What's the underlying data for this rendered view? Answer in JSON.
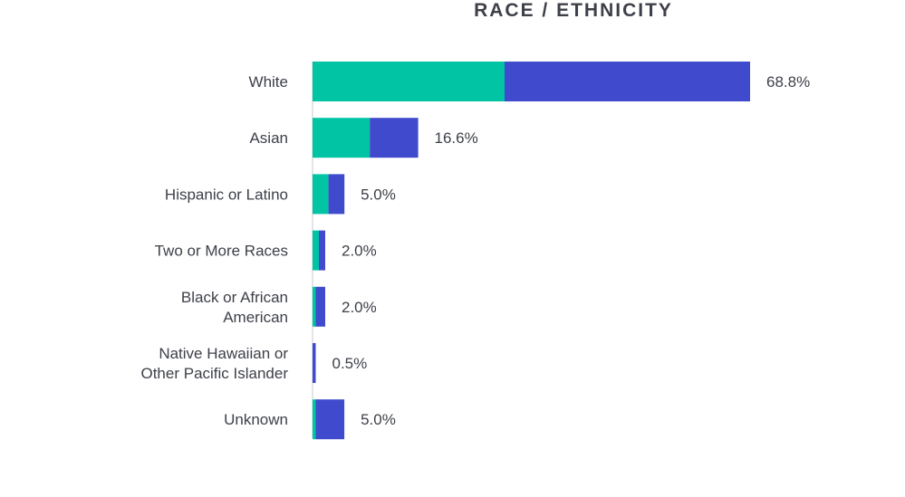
{
  "chart_data": {
    "type": "bar",
    "orientation": "horizontal",
    "stacked": true,
    "title": "RACE / ETHNICITY",
    "categories": [
      [
        "White"
      ],
      [
        "Asian"
      ],
      [
        "Hispanic or Latino"
      ],
      [
        "Two or More Races"
      ],
      [
        "Black or African",
        "American"
      ],
      [
        "Native Hawaiian or",
        "Other Pacific Islander"
      ],
      [
        "Unknown"
      ]
    ],
    "series": [
      {
        "values": [
          30.2,
          9.0,
          2.5,
          1.0,
          0.5,
          0.0,
          0.5
        ]
      },
      {
        "values": [
          38.6,
          7.6,
          2.5,
          1.0,
          1.5,
          0.5,
          4.5
        ]
      }
    ],
    "totals": [
      68.8,
      16.6,
      5.0,
      2.0,
      2.0,
      0.5,
      5.0
    ],
    "value_labels": [
      "68.8%",
      "16.6%",
      "5.0%",
      "2.0%",
      "2.0%",
      "0.5%",
      "5.0%"
    ],
    "xlim": [
      0,
      68.8
    ],
    "grid": false,
    "legend": "none",
    "colors": {
      "series_1": "#00c4a3",
      "series_2": "#3f4bcc",
      "axis": "#c8c8c8",
      "text": "#3e4049"
    }
  }
}
